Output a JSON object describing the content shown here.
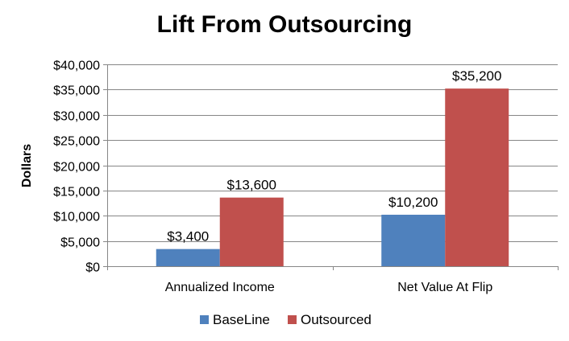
{
  "chart_data": {
    "type": "bar",
    "title": "Lift From Outsourcing",
    "ylabel": "Dollars",
    "xlabel": "",
    "categories": [
      "Annualized Income",
      "Net Value At Flip"
    ],
    "series": [
      {
        "name": "BaseLine",
        "values": [
          3400,
          10200
        ],
        "labels": [
          "$3,400",
          "$10,200"
        ],
        "color": "#4F81BD"
      },
      {
        "name": "Outsourced",
        "values": [
          13600,
          35200
        ],
        "labels": [
          "$13,600",
          "$35,200"
        ],
        "color": "#C0504D"
      }
    ],
    "ylim": [
      0,
      40000
    ],
    "yticks": [
      0,
      5000,
      10000,
      15000,
      20000,
      25000,
      30000,
      35000,
      40000
    ],
    "ytick_labels": [
      "$0",
      "$5,000",
      "$10,000",
      "$15,000",
      "$20,000",
      "$25,000",
      "$30,000",
      "$35,000",
      "$40,000"
    ],
    "grid": true,
    "legend_position": "bottom"
  }
}
